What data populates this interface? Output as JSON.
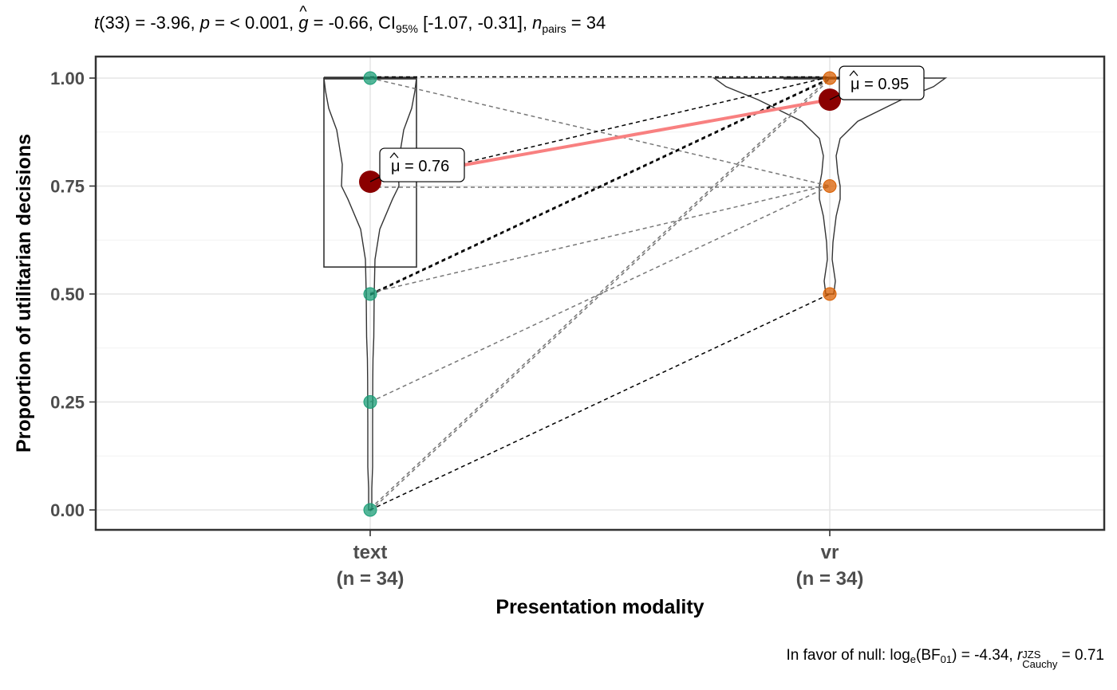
{
  "subtitle": {
    "t_label": "t",
    "t_df": "(33)",
    "t_value": " = -3.96, ",
    "p_label": "p",
    "p_value": " = < 0.001, ",
    "g_label": "g",
    "g_value": " = -0.66, CI",
    "ci_level": "95%",
    "ci_value": " [-1.07, -0.31], ",
    "n_label": "n",
    "n_sub": "pairs",
    "n_value": " = 34"
  },
  "caption": {
    "prefix": "In favor of null: log",
    "log_sub": "e",
    "bf_open": "(BF",
    "bf_sub": "01",
    "bf_value": ") = -4.34, ",
    "r_label": "r",
    "r_sup": "JZS",
    "r_sub": "Cauchy",
    "r_value": " = 0.71"
  },
  "chart_data": {
    "type": "violin-box-paired",
    "xlabel": "Presentation modality",
    "ylabel": "Proportion of utilitarian decisions",
    "ylim": [
      0,
      1
    ],
    "y_ticks": [
      "0.00",
      "0.25",
      "0.50",
      "0.75",
      "1.00"
    ],
    "grid": true,
    "categories": [
      {
        "name": "text",
        "n_label": "(n = 34)",
        "color": "#1b9e77"
      },
      {
        "name": "vr",
        "n_label": "(n = 34)",
        "color": "#d95f02"
      }
    ],
    "unique_values": {
      "text": [
        0,
        0.25,
        0.5,
        0.75,
        1.0
      ],
      "vr": [
        0.5,
        0.75,
        1.0
      ]
    },
    "boxplot": {
      "text": {
        "q1": 0.5625,
        "median": 1.0,
        "q3": 1.0
      },
      "vr": {
        "q1": 1.0,
        "median": 1.0,
        "q3": 1.0
      }
    },
    "means": [
      {
        "group": "text",
        "value": 0.76,
        "label": "0.76"
      },
      {
        "group": "vr",
        "value": 0.95,
        "label": "0.95"
      }
    ],
    "mean_color": "#8b0000",
    "mean_line_color": "#f88080",
    "pair_lines": [
      {
        "from": 1.0,
        "to": 1.0,
        "style": "black"
      },
      {
        "from": 1.0,
        "to": 0.75,
        "style": "grey"
      },
      {
        "from": 0.75,
        "to": 0.75,
        "style": "grey"
      },
      {
        "from": 0.75,
        "to": 1.0,
        "style": "black"
      },
      {
        "from": 0.5,
        "to": 1.0,
        "style": "black"
      },
      {
        "from": 0.5,
        "to": 1.0,
        "style": "black"
      },
      {
        "from": 0.5,
        "to": 0.75,
        "style": "grey"
      },
      {
        "from": 0.25,
        "to": 0.75,
        "style": "grey"
      },
      {
        "from": 0.0,
        "to": 1.0,
        "style": "grey"
      },
      {
        "from": 0.0,
        "to": 1.0,
        "style": "grey"
      },
      {
        "from": 0.0,
        "to": 0.5,
        "style": "black"
      }
    ],
    "violin_text": [
      [
        0,
        2
      ],
      [
        0.05,
        2
      ],
      [
        0.1,
        3
      ],
      [
        0.2,
        3
      ],
      [
        0.3,
        3.2
      ],
      [
        0.35,
        3.5
      ],
      [
        0.4,
        4.5
      ],
      [
        0.5,
        5
      ],
      [
        0.58,
        6
      ],
      [
        0.65,
        12
      ],
      [
        0.72,
        28
      ],
      [
        0.75,
        36
      ],
      [
        0.8,
        35
      ],
      [
        0.88,
        42
      ],
      [
        0.93,
        52
      ],
      [
        0.97,
        56
      ],
      [
        1.0,
        58
      ]
    ],
    "violin_vr": [
      [
        0.5,
        5
      ],
      [
        0.53,
        7
      ],
      [
        0.58,
        3
      ],
      [
        0.62,
        4
      ],
      [
        0.68,
        8
      ],
      [
        0.72,
        13
      ],
      [
        0.75,
        13
      ],
      [
        0.78,
        10
      ],
      [
        0.82,
        8
      ],
      [
        0.86,
        13
      ],
      [
        0.9,
        35
      ],
      [
        0.95,
        90
      ],
      [
        0.98,
        130
      ],
      [
        1.0,
        145
      ]
    ]
  }
}
